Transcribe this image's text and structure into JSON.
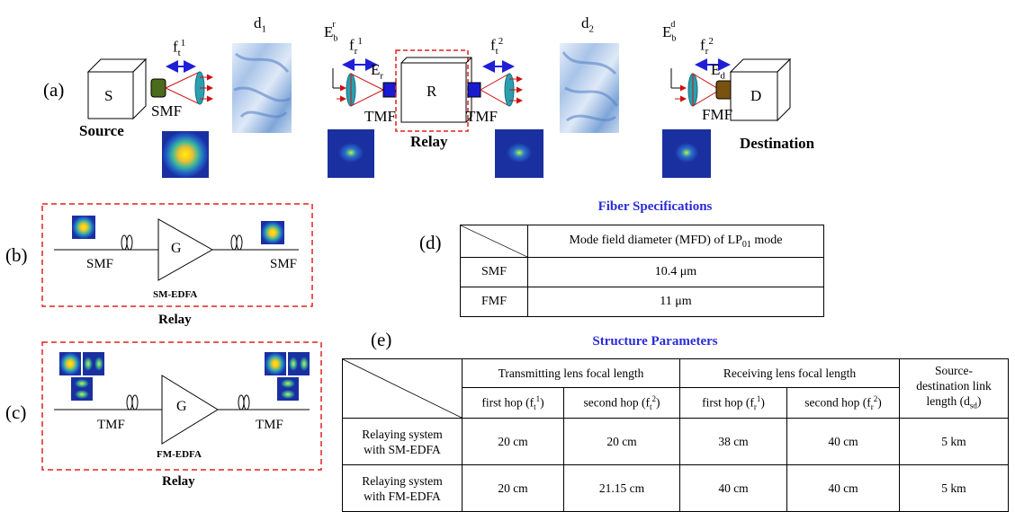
{
  "panel_a": {
    "label": "(a)",
    "source": {
      "box": "S",
      "fiber": "SMF",
      "name": "Source",
      "lens_f": "f",
      "lens_sub": "t",
      "lens_sup": "1"
    },
    "turb1": {
      "d": "d",
      "sub": "1"
    },
    "relay": {
      "box": "R",
      "name": "Relay",
      "in_beam": "E",
      "in_beam_sub": "b",
      "in_beam_sup": "r",
      "lens_in_f": "f",
      "lens_in_sub": "r",
      "lens_in_sup": "1",
      "field": "E",
      "field_sub": "r",
      "fiber_in": "TMF",
      "fiber_out": "TMF",
      "lens_out_f": "f",
      "lens_out_sub": "t",
      "lens_out_sup": "2"
    },
    "turb2": {
      "d": "d",
      "sub": "2"
    },
    "destination": {
      "box": "D",
      "fiber": "FMF",
      "name": "Destination",
      "in_beam": "E",
      "in_beam_sub": "b",
      "in_beam_sup": "d",
      "lens_f": "f",
      "lens_sub": "r",
      "lens_sup": "2",
      "field": "E",
      "field_sub": "d"
    },
    "colors": {
      "blue_arrow": "#1f1fd6",
      "red_arrow": "#cc1010",
      "dashed_box": "#e02020",
      "lens": "#2a9fb0"
    }
  },
  "panel_b": {
    "label": "(b)",
    "left_fiber": "SMF",
    "right_fiber": "SMF",
    "gain": "G",
    "amp": "SM-EDFA",
    "caption": "Relay"
  },
  "panel_c": {
    "label": "(c)",
    "left_fiber": "TMF",
    "right_fiber": "TMF",
    "gain": "G",
    "amp": "FM-EDFA",
    "caption": "Relay"
  },
  "panel_d": {
    "label": "(d)",
    "title": "Fiber Specifications",
    "header_pre": "Mode field diameter (MFD) of LP",
    "header_sub": "01",
    "header_post": " mode",
    "rows": [
      {
        "name": "SMF",
        "value": "10.4 μm"
      },
      {
        "name": "FMF",
        "value": "11 μm"
      }
    ]
  },
  "panel_e": {
    "label": "(e)",
    "title": "Structure Parameters",
    "groups": {
      "tx": "Transmitting lens focal length",
      "rx": "Receiving lens focal length",
      "link_1": "Source-",
      "link_2": "destination link",
      "link_3": "length (d",
      "link_sub": "sd",
      "link_end": ")"
    },
    "sub": {
      "tx1": "first hop (f",
      "tx1_sub": "t",
      "tx1_sup": "1",
      "tx2": "second hop (f",
      "tx2_sub": "t",
      "tx2_sup": "2",
      "rx1": "first hop (f",
      "rx1_sub": "r",
      "rx1_sup": "1",
      "rx2": "second hop (f",
      "rx2_sub": "r",
      "rx2_sup": "2",
      "close": ")"
    },
    "rows": [
      {
        "name_1": "Relaying system",
        "name_2": "with SM-EDFA",
        "tx1": "20 cm",
        "tx2": "20 cm",
        "rx1": "38 cm",
        "rx2": "40 cm",
        "link": "5 km"
      },
      {
        "name_1": "Relaying system",
        "name_2": "with FM-EDFA",
        "tx1": "20 cm",
        "tx2": "21.15 cm",
        "rx1": "40 cm",
        "rx2": "40 cm",
        "link": "5 km"
      }
    ]
  }
}
